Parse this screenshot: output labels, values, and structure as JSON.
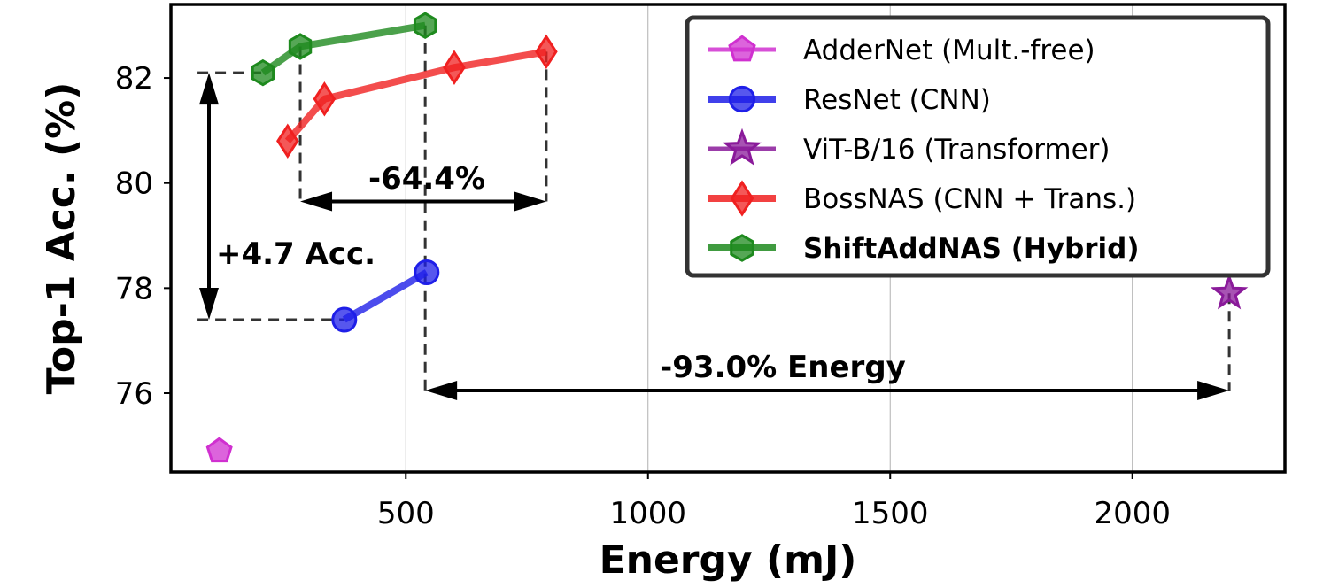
{
  "chart_data": {
    "type": "scatter",
    "title": "",
    "xlabel": "Energy (mJ)",
    "ylabel": "Top-1 Acc. (%)",
    "xlim": [
      15,
      2315
    ],
    "ylim": [
      74.5,
      83.4
    ],
    "xticks": [
      500,
      1000,
      1500,
      2000
    ],
    "yticks": [
      76,
      78,
      80,
      82
    ],
    "grid": "vertical",
    "legend_position": "top-right",
    "series": [
      {
        "name": "AdderNet (Mult.-free)",
        "color": "#d030d0",
        "marker": "pentagon",
        "bold": false,
        "x": [
          115
        ],
        "y": [
          74.9
        ]
      },
      {
        "name": "ResNet (CNN)",
        "color": "#1f1fe8",
        "marker": "circle",
        "bold": false,
        "x": [
          373,
          543
        ],
        "y": [
          77.4,
          78.3
        ]
      },
      {
        "name": "ViT-B/16 (Transformer)",
        "color": "#8a1a9a",
        "marker": "star",
        "bold": false,
        "x": [
          2200
        ],
        "y": [
          77.9
        ]
      },
      {
        "name": "BossNAS (CNN + Trans.)",
        "color": "#f02020",
        "marker": "diamond",
        "bold": false,
        "x": [
          256,
          332,
          600,
          790
        ],
        "y": [
          80.8,
          81.6,
          82.2,
          82.5
        ]
      },
      {
        "name": "ShiftAddNAS (Hybrid)",
        "color": "#1e8a1e",
        "marker": "hexagon",
        "bold": true,
        "x": [
          205,
          282,
          540
        ],
        "y": [
          82.1,
          82.6,
          83.0
        ]
      }
    ],
    "annotations": [
      {
        "text": "-64.4%"
      },
      {
        "text": "+4.7 Acc."
      },
      {
        "text": "-93.0% Energy"
      }
    ]
  }
}
